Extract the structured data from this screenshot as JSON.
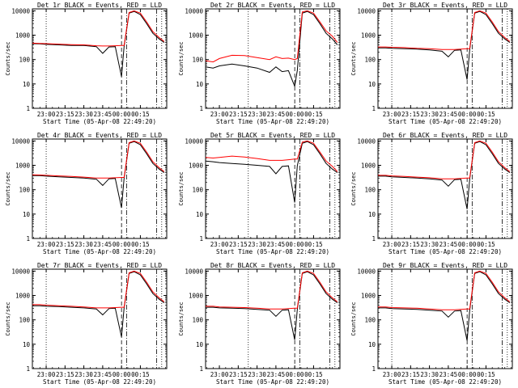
{
  "chart_data": {
    "type": "line",
    "yscale": "log",
    "ylim": [
      1,
      12000
    ],
    "x_start": "05-Apr-08 22:49:20",
    "xlabel": "Start Time (05-Apr-08 22:49:20)",
    "ylabel": "Counts/sec",
    "x_tick_labels": [
      "23:00",
      "23:15",
      "23:30",
      "23:45",
      "00:00",
      "00:15"
    ],
    "y_tick_labels": [
      "1",
      "10",
      "100",
      "1000",
      "10000"
    ],
    "colors": {
      "events": "#000000",
      "lld": "#ff0000"
    },
    "panels": [
      {
        "title": "Det 1r BLACK = Events, RED = LLD",
        "series": [
          {
            "name": "Events",
            "color": "#000000",
            "x": [
              "22:49",
              "22:55",
              "23:00",
              "23:10",
              "23:20",
              "23:30",
              "23:40",
              "23:45",
              "23:50",
              "23:55",
              "00:00",
              "00:02",
              "00:06",
              "00:10",
              "00:15",
              "00:20",
              "00:25",
              "00:30",
              "00:34"
            ],
            "y": [
              450,
              440,
              420,
              400,
              380,
              380,
              340,
              180,
              330,
              340,
              20,
              340,
              8000,
              9500,
              7000,
              3000,
              1200,
              700,
              500
            ]
          },
          {
            "name": "LLD",
            "color": "#ff0000",
            "x": [
              "22:49",
              "22:55",
              "23:00",
              "23:10",
              "23:20",
              "23:30",
              "23:40",
              "23:45",
              "23:50",
              "23:55",
              "00:00",
              "00:02",
              "00:06",
              "00:10",
              "00:15",
              "00:20",
              "00:25",
              "00:30",
              "00:34"
            ],
            "y": [
              470,
              460,
              450,
              430,
              410,
              400,
              370,
              360,
              360,
              370,
              380,
              380,
              8500,
              10000,
              8000,
              3500,
              1400,
              800,
              550
            ]
          }
        ]
      },
      {
        "title": "Det 2r BLACK = Events, RED = LLD",
        "series": [
          {
            "name": "Events",
            "color": "#000000",
            "x": [
              "22:49",
              "22:55",
              "23:00",
              "23:10",
              "23:20",
              "23:30",
              "23:40",
              "23:45",
              "23:50",
              "23:55",
              "00:00",
              "00:02",
              "00:06",
              "00:10",
              "00:15",
              "00:20",
              "00:25",
              "00:30",
              "00:34"
            ],
            "y": [
              50,
              45,
              55,
              65,
              55,
              45,
              30,
              50,
              32,
              35,
              8,
              35,
              8000,
              9500,
              7000,
              3000,
              1200,
              700,
              400
            ]
          },
          {
            "name": "LLD",
            "color": "#ff0000",
            "x": [
              "22:49",
              "22:55",
              "23:00",
              "23:10",
              "23:20",
              "23:30",
              "23:40",
              "23:45",
              "23:50",
              "23:55",
              "00:00",
              "00:02",
              "00:06",
              "00:10",
              "00:15",
              "00:20",
              "00:25",
              "00:30",
              "00:34"
            ],
            "y": [
              90,
              80,
              110,
              150,
              145,
              120,
              100,
              130,
              110,
              115,
              100,
              110,
              9000,
              10000,
              8000,
              3500,
              1500,
              900,
              500
            ]
          }
        ]
      },
      {
        "title": "Det 3r BLACK = Events, RED = LLD",
        "series": [
          {
            "name": "Events",
            "color": "#000000",
            "x": [
              "22:49",
              "22:55",
              "23:00",
              "23:10",
              "23:20",
              "23:30",
              "23:40",
              "23:45",
              "23:50",
              "23:55",
              "00:00",
              "00:02",
              "00:06",
              "00:10",
              "00:15",
              "00:20",
              "00:25",
              "00:30",
              "00:34"
            ],
            "y": [
              300,
              300,
              290,
              280,
              270,
              250,
              220,
              130,
              240,
              250,
              15,
              250,
              8000,
              9500,
              7000,
              3000,
              1200,
              700,
              500
            ]
          },
          {
            "name": "LLD",
            "color": "#ff0000",
            "x": [
              "22:49",
              "22:55",
              "23:00",
              "23:10",
              "23:20",
              "23:30",
              "23:40",
              "23:45",
              "23:50",
              "23:55",
              "00:00",
              "00:02",
              "00:06",
              "00:10",
              "00:15",
              "00:20",
              "00:25",
              "00:30",
              "00:34"
            ],
            "y": [
              330,
              330,
              320,
              310,
              290,
              280,
              260,
              260,
              260,
              270,
              280,
              280,
              8500,
              10000,
              8000,
              3500,
              1400,
              800,
              550
            ]
          }
        ]
      },
      {
        "title": "Det 4r BLACK = Events, RED = LLD",
        "series": [
          {
            "name": "Events",
            "color": "#000000",
            "x": [
              "22:49",
              "22:55",
              "23:00",
              "23:10",
              "23:20",
              "23:30",
              "23:40",
              "23:45",
              "23:50",
              "23:55",
              "00:00",
              "00:02",
              "00:06",
              "00:10",
              "00:15",
              "00:20",
              "00:25",
              "00:30",
              "00:34"
            ],
            "y": [
              380,
              380,
              360,
              340,
              320,
              300,
              270,
              150,
              280,
              290,
              18,
              290,
              8000,
              9500,
              7000,
              3000,
              1200,
              700,
              500
            ]
          },
          {
            "name": "LLD",
            "color": "#ff0000",
            "x": [
              "22:49",
              "22:55",
              "23:00",
              "23:10",
              "23:20",
              "23:30",
              "23:40",
              "23:45",
              "23:50",
              "23:55",
              "00:00",
              "00:02",
              "00:06",
              "00:10",
              "00:15",
              "00:20",
              "00:25",
              "00:30",
              "00:34"
            ],
            "y": [
              410,
              400,
              390,
              370,
              350,
              330,
              300,
              300,
              300,
              310,
              320,
              320,
              8500,
              10000,
              8000,
              3500,
              1400,
              800,
              550
            ]
          }
        ]
      },
      {
        "title": "Det 5r BLACK = Events, RED = LLD",
        "series": [
          {
            "name": "Events",
            "color": "#000000",
            "x": [
              "22:49",
              "22:55",
              "23:00",
              "23:10",
              "23:20",
              "23:30",
              "23:40",
              "23:45",
              "23:50",
              "23:55",
              "00:00",
              "00:02",
              "00:06",
              "00:10",
              "00:15",
              "00:20",
              "00:25",
              "00:30",
              "00:34"
            ],
            "y": [
              1500,
              1400,
              1300,
              1200,
              1100,
              1000,
              900,
              450,
              900,
              950,
              30,
              950,
              8000,
              9500,
              7000,
              3000,
              1200,
              700,
              500
            ]
          },
          {
            "name": "LLD",
            "color": "#ff0000",
            "x": [
              "22:49",
              "22:55",
              "23:00",
              "23:10",
              "23:20",
              "23:30",
              "23:40",
              "23:45",
              "23:50",
              "23:55",
              "00:00",
              "00:02",
              "00:06",
              "00:10",
              "00:15",
              "00:20",
              "00:25",
              "00:30",
              "00:34"
            ],
            "y": [
              2100,
              2000,
              2100,
              2400,
              2200,
              1900,
              1600,
              1600,
              1600,
              1700,
              1800,
              1800,
              9000,
              10000,
              8000,
              3500,
              1500,
              900,
              550
            ]
          }
        ]
      },
      {
        "title": "Det 6r BLACK = Events, RED = LLD",
        "series": [
          {
            "name": "Events",
            "color": "#000000",
            "x": [
              "22:49",
              "22:55",
              "23:00",
              "23:10",
              "23:20",
              "23:30",
              "23:40",
              "23:45",
              "23:50",
              "23:55",
              "00:00",
              "00:02",
              "00:06",
              "00:10",
              "00:15",
              "00:20",
              "00:25",
              "00:30",
              "00:34"
            ],
            "y": [
              360,
              360,
              340,
              320,
              300,
              280,
              250,
              140,
              260,
              270,
              16,
              270,
              8000,
              9500,
              7000,
              3000,
              1200,
              700,
              500
            ]
          },
          {
            "name": "LLD",
            "color": "#ff0000",
            "x": [
              "22:49",
              "22:55",
              "23:00",
              "23:10",
              "23:20",
              "23:30",
              "23:40",
              "23:45",
              "23:50",
              "23:55",
              "00:00",
              "00:02",
              "00:06",
              "00:10",
              "00:15",
              "00:20",
              "00:25",
              "00:30",
              "00:34"
            ],
            "y": [
              390,
              390,
              370,
              350,
              330,
              310,
              280,
              280,
              280,
              290,
              300,
              300,
              8500,
              10000,
              8000,
              3500,
              1400,
              800,
              550
            ]
          }
        ]
      },
      {
        "title": "Det 7r BLACK = Events, RED = LLD",
        "series": [
          {
            "name": "Events",
            "color": "#000000",
            "x": [
              "22:49",
              "22:55",
              "23:00",
              "23:10",
              "23:20",
              "23:30",
              "23:40",
              "23:45",
              "23:50",
              "23:55",
              "00:00",
              "00:02",
              "00:06",
              "00:10",
              "00:15",
              "00:20",
              "00:25",
              "00:30",
              "00:34"
            ],
            "y": [
              380,
              380,
              360,
              350,
              330,
              310,
              280,
              160,
              290,
              300,
              20,
              300,
              8000,
              9500,
              7000,
              3000,
              1200,
              700,
              500
            ]
          },
          {
            "name": "LLD",
            "color": "#ff0000",
            "x": [
              "22:49",
              "22:55",
              "23:00",
              "23:10",
              "23:20",
              "23:30",
              "23:40",
              "23:45",
              "23:50",
              "23:55",
              "00:00",
              "00:02",
              "00:06",
              "00:10",
              "00:15",
              "00:20",
              "00:25",
              "00:30",
              "00:34"
            ],
            "y": [
              420,
              420,
              400,
              380,
              360,
              340,
              310,
              310,
              310,
              320,
              330,
              330,
              8500,
              10000,
              8000,
              3500,
              1400,
              800,
              550
            ]
          }
        ]
      },
      {
        "title": "Det 8r BLACK = Events, RED = LLD",
        "series": [
          {
            "name": "Events",
            "color": "#000000",
            "x": [
              "22:49",
              "22:55",
              "23:00",
              "23:10",
              "23:20",
              "23:30",
              "23:40",
              "23:45",
              "23:50",
              "23:55",
              "00:00",
              "00:02",
              "00:06",
              "00:10",
              "00:15",
              "00:20",
              "00:25",
              "00:30",
              "00:34"
            ],
            "y": [
              330,
              330,
              310,
              300,
              290,
              270,
              250,
              140,
              250,
              260,
              15,
              260,
              8000,
              9500,
              7000,
              3000,
              1200,
              700,
              500
            ]
          },
          {
            "name": "LLD",
            "color": "#ff0000",
            "x": [
              "22:49",
              "22:55",
              "23:00",
              "23:10",
              "23:20",
              "23:30",
              "23:40",
              "23:45",
              "23:50",
              "23:55",
              "00:00",
              "00:02",
              "00:06",
              "00:10",
              "00:15",
              "00:20",
              "00:25",
              "00:30",
              "00:34"
            ],
            "y": [
              360,
              360,
              340,
              330,
              320,
              300,
              280,
              280,
              280,
              290,
              300,
              300,
              8500,
              10000,
              8000,
              3500,
              1400,
              800,
              550
            ]
          }
        ]
      },
      {
        "title": "Det 9r BLACK = Events, RED = LLD",
        "series": [
          {
            "name": "Events",
            "color": "#000000",
            "x": [
              "22:49",
              "22:55",
              "23:00",
              "23:10",
              "23:20",
              "23:30",
              "23:40",
              "23:45",
              "23:50",
              "23:55",
              "00:00",
              "00:02",
              "00:06",
              "00:10",
              "00:15",
              "00:20",
              "00:25",
              "00:30",
              "00:34"
            ],
            "y": [
              310,
              310,
              290,
              280,
              270,
              250,
              230,
              130,
              230,
              240,
              14,
              240,
              8000,
              9500,
              7000,
              3000,
              1200,
              700,
              500
            ]
          },
          {
            "name": "LLD",
            "color": "#ff0000",
            "x": [
              "22:49",
              "22:55",
              "23:00",
              "23:10",
              "23:20",
              "23:30",
              "23:40",
              "23:45",
              "23:50",
              "23:55",
              "00:00",
              "00:02",
              "00:06",
              "00:10",
              "00:15",
              "00:20",
              "00:25",
              "00:30",
              "00:34"
            ],
            "y": [
              340,
              340,
              320,
              310,
              300,
              280,
              260,
              260,
              260,
              270,
              280,
              280,
              8500,
              10000,
              8000,
              3500,
              1400,
              800,
              550
            ]
          }
        ]
      }
    ]
  }
}
